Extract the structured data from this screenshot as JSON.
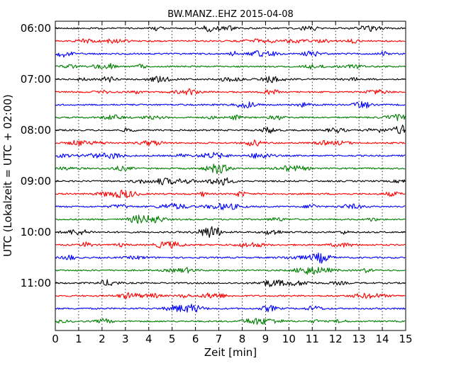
{
  "chart_data": {
    "type": "line",
    "title": "BW.MANZ..EHZ 2015-04-08",
    "xlabel": "Zeit  [min]",
    "ylabel": "UTC (Lokalzeit = UTC + 02:00)",
    "xlim": [
      0,
      15
    ],
    "x_ticks": [
      "0",
      "1",
      "2",
      "3",
      "4",
      "5",
      "6",
      "7",
      "8",
      "9",
      "10",
      "11",
      "12",
      "13",
      "14",
      "15"
    ],
    "y_ticks": [
      "06:00",
      "07:00",
      "08:00",
      "09:00",
      "10:00",
      "11:00"
    ],
    "grid": "vertical dotted",
    "trace_interval_minutes": 15,
    "trace_count": 24,
    "colors": [
      "#000000",
      "#ff0000",
      "#0000ff",
      "#007f00"
    ],
    "series": [
      {
        "start": "06:00",
        "color": "#000000"
      },
      {
        "start": "06:15",
        "color": "#ff0000"
      },
      {
        "start": "06:30",
        "color": "#0000ff"
      },
      {
        "start": "06:45",
        "color": "#007f00"
      },
      {
        "start": "07:00",
        "color": "#000000"
      },
      {
        "start": "07:15",
        "color": "#ff0000"
      },
      {
        "start": "07:30",
        "color": "#0000ff"
      },
      {
        "start": "07:45",
        "color": "#007f00"
      },
      {
        "start": "08:00",
        "color": "#000000"
      },
      {
        "start": "08:15",
        "color": "#ff0000"
      },
      {
        "start": "08:30",
        "color": "#0000ff"
      },
      {
        "start": "08:45",
        "color": "#007f00"
      },
      {
        "start": "09:00",
        "color": "#000000"
      },
      {
        "start": "09:15",
        "color": "#ff0000"
      },
      {
        "start": "09:30",
        "color": "#0000ff"
      },
      {
        "start": "09:45",
        "color": "#007f00"
      },
      {
        "start": "10:00",
        "color": "#000000"
      },
      {
        "start": "10:15",
        "color": "#ff0000"
      },
      {
        "start": "10:30",
        "color": "#0000ff"
      },
      {
        "start": "10:45",
        "color": "#007f00"
      },
      {
        "start": "11:00",
        "color": "#000000"
      },
      {
        "start": "11:15",
        "color": "#ff0000"
      },
      {
        "start": "11:30",
        "color": "#0000ff"
      },
      {
        "start": "11:45",
        "color": "#007f00"
      }
    ]
  }
}
